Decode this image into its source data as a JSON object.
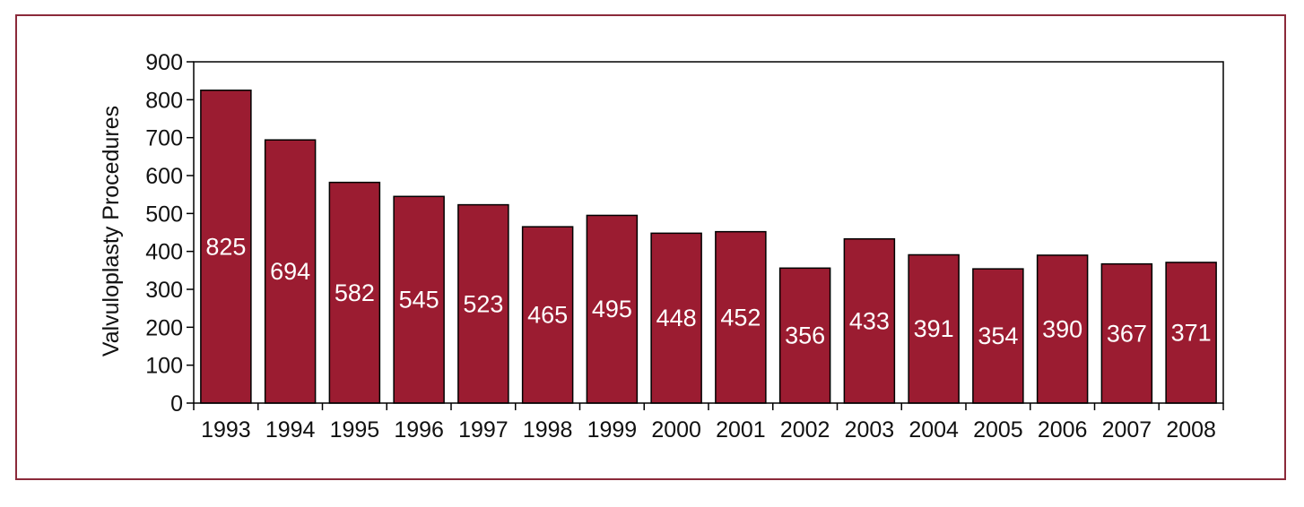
{
  "chart_data": {
    "type": "bar",
    "title": "",
    "xlabel": "",
    "ylabel": "Valvuloplasty Procedures",
    "ylim": [
      0,
      900
    ],
    "yticks": [
      0,
      100,
      200,
      300,
      400,
      500,
      600,
      700,
      800,
      900
    ],
    "categories": [
      "1993",
      "1994",
      "1995",
      "1996",
      "1997",
      "1998",
      "1999",
      "2000",
      "2001",
      "2002",
      "2003",
      "2004",
      "2005",
      "2006",
      "2007",
      "2008"
    ],
    "values": [
      825,
      694,
      582,
      545,
      523,
      465,
      495,
      448,
      452,
      356,
      433,
      391,
      354,
      390,
      367,
      371
    ],
    "data_labels": [
      "825",
      "694",
      "582",
      "545",
      "523",
      "465",
      "495",
      "448",
      "452",
      "356",
      "433",
      "391",
      "354",
      "390",
      "367",
      "371"
    ],
    "bar_color": "#9b1c31",
    "frame_color": "#8b2a3a",
    "grid": false,
    "legend": "none"
  }
}
